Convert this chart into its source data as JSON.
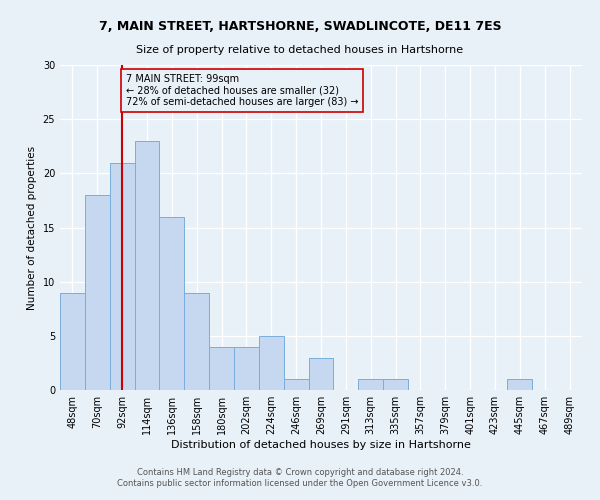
{
  "title": "7, MAIN STREET, HARTSHORNE, SWADLINCOTE, DE11 7ES",
  "subtitle": "Size of property relative to detached houses in Hartshorne",
  "xlabel": "Distribution of detached houses by size in Hartshorne",
  "ylabel": "Number of detached properties",
  "footer_line1": "Contains HM Land Registry data © Crown copyright and database right 2024.",
  "footer_line2": "Contains public sector information licensed under the Open Government Licence v3.0.",
  "bin_labels": [
    "48sqm",
    "70sqm",
    "92sqm",
    "114sqm",
    "136sqm",
    "158sqm",
    "180sqm",
    "202sqm",
    "224sqm",
    "246sqm",
    "269sqm",
    "291sqm",
    "313sqm",
    "335sqm",
    "357sqm",
    "379sqm",
    "401sqm",
    "423sqm",
    "445sqm",
    "467sqm",
    "489sqm"
  ],
  "bar_values": [
    9,
    18,
    21,
    23,
    16,
    9,
    4,
    4,
    5,
    1,
    3,
    0,
    1,
    1,
    0,
    0,
    0,
    0,
    1,
    0,
    0
  ],
  "bar_color": "#c5d8f0",
  "bar_edgecolor": "#7aaddc",
  "bg_color": "#e8f0f8",
  "grid_color": "#ffffff",
  "annotation_line_x_label": "92sqm",
  "annotation_line_color": "#cc0000",
  "annotation_text": "7 MAIN STREET: 99sqm\n← 28% of detached houses are smaller (32)\n72% of semi-detached houses are larger (83) →",
  "annotation_box_edgecolor": "#cc0000",
  "ylim": [
    0,
    30
  ],
  "yticks": [
    0,
    5,
    10,
    15,
    20,
    25,
    30
  ],
  "title_fontsize": 9,
  "subtitle_fontsize": 8,
  "xlabel_fontsize": 8,
  "ylabel_fontsize": 7.5,
  "tick_fontsize": 7,
  "annotation_fontsize": 7,
  "footer_fontsize": 6
}
